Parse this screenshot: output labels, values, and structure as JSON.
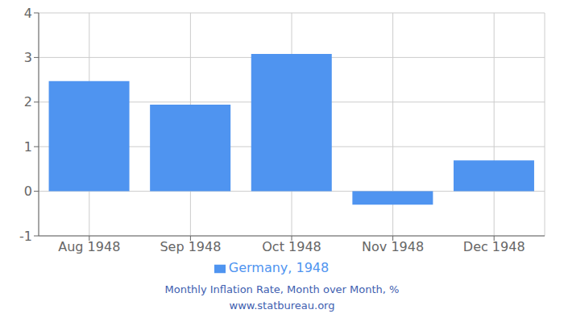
{
  "chart_data": {
    "type": "bar",
    "categories": [
      "Aug 1948",
      "Sep 1948",
      "Oct 1948",
      "Nov 1948",
      "Dec 1948"
    ],
    "series": [
      {
        "name": "Germany, 1948",
        "color": "#4f94f0",
        "values": [
          2.47,
          1.94,
          3.08,
          -0.3,
          0.69
        ]
      }
    ],
    "ylim": [
      -1,
      4
    ],
    "yticks": [
      -1,
      0,
      1,
      2,
      3,
      4
    ],
    "grid": true,
    "legend": "bottom",
    "annotations": [
      "Monthly Inflation Rate, Month over Month, %",
      "www.statbureau.org"
    ]
  }
}
